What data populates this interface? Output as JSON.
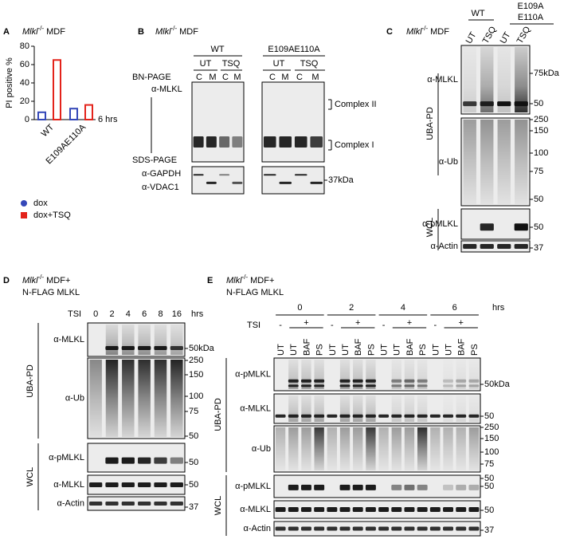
{
  "chart_data": {
    "type": "bar",
    "panel_label": "A",
    "header": {
      "gene": "Mlkl",
      "genotype": "-/-",
      "cell": "MDF"
    },
    "ylabel": "PI positive %",
    "categories": [
      "WT",
      "E109AE110A"
    ],
    "series": [
      {
        "name": "dox",
        "color": "#3447b8",
        "values": [
          8,
          12
        ]
      },
      {
        "name": "dox+TSQ",
        "color": "#e3231b",
        "values": [
          65,
          16
        ]
      }
    ],
    "ylim": [
      0,
      80
    ],
    "yticks": [
      0,
      20,
      40,
      60,
      80
    ],
    "annotation": "6 hrs"
  },
  "panel_b": {
    "label": "B",
    "header": {
      "gene": "Mlkl",
      "genotype": "-/-",
      "cell": "MDF"
    },
    "genotypes": [
      "WT",
      "E109AE110A"
    ],
    "treatments": [
      "UT",
      "TSQ",
      "UT",
      "TSQ"
    ],
    "fractions": [
      "C",
      "M",
      "C",
      "M",
      "C",
      "M",
      "C",
      "M"
    ],
    "methods": [
      "BN-PAGE",
      "SDS-PAGE"
    ],
    "antibodies": [
      "α-MLKL",
      "α-GAPDH",
      "α-VDAC1"
    ],
    "complexes": [
      "Complex II",
      "Complex I"
    ],
    "marker": "37kDa"
  },
  "panel_c": {
    "label": "C",
    "header": {
      "gene": "Mlkl",
      "genotype": "-/-",
      "cell": "MDF"
    },
    "genotype_wt": "WT",
    "genotype_mut": [
      "E109A",
      "E110A"
    ],
    "treatments": [
      "UT",
      "TSQ",
      "UT",
      "TSQ"
    ],
    "sections": [
      "UBA-PD",
      "WCL"
    ],
    "blots": [
      {
        "antibody": "α-MLKL",
        "markers": [
          "75kDa",
          "50"
        ]
      },
      {
        "antibody": "α-Ub",
        "markers": [
          "250",
          "150",
          "100",
          "75",
          "50"
        ]
      },
      {
        "antibody": "α-pMLKL",
        "markers": [
          "50"
        ]
      },
      {
        "antibody": "α-Actin",
        "markers": [
          "37"
        ]
      }
    ]
  },
  "panel_d": {
    "label": "D",
    "header": {
      "gene": "Mlkl",
      "genotype": "-/-",
      "cell": "MDF+"
    },
    "construct": "N-FLAG MLKL",
    "treatment": "TSI",
    "timepoints": [
      0,
      2,
      4,
      6,
      8,
      16
    ],
    "time_unit": "hrs",
    "sections": [
      "UBA-PD",
      "WCL"
    ],
    "blots": [
      {
        "antibody": "α-MLKL",
        "markers": [
          "50kDa"
        ]
      },
      {
        "antibody": "α-Ub",
        "markers": [
          "250",
          "150",
          "100",
          "75",
          "50"
        ]
      },
      {
        "antibody": "α-pMLKL",
        "markers": [
          "50"
        ]
      },
      {
        "antibody": "α-MLKL",
        "markers": [
          "50"
        ]
      },
      {
        "antibody": "α-Actin",
        "markers": [
          "37"
        ]
      }
    ]
  },
  "panel_e": {
    "label": "E",
    "header": {
      "gene": "Mlkl",
      "genotype": "-/-",
      "cell": "MDF+"
    },
    "construct": "N-FLAG MLKL",
    "treatment": "TSI",
    "timepoints": [
      0,
      2,
      4,
      6
    ],
    "time_unit": "hrs",
    "tsi_signs": [
      "-",
      "+",
      "-",
      "+",
      "-",
      "+",
      "-",
      "+"
    ],
    "lanes": [
      "UT",
      "UT",
      "BAF",
      "PS",
      "UT",
      "UT",
      "BAF",
      "PS",
      "UT",
      "UT",
      "BAF",
      "PS",
      "UT",
      "UT",
      "BAF",
      "PS"
    ],
    "sections": [
      "UBA-PD",
      "WCL"
    ],
    "blots": [
      {
        "antibody": "α-pMLKL",
        "markers": [
          "50kDa"
        ]
      },
      {
        "antibody": "α-MLKL",
        "markers": [
          "50"
        ]
      },
      {
        "antibody": "α-Ub",
        "markers": [
          "250",
          "150",
          "100",
          "75",
          "50"
        ]
      },
      {
        "antibody": "α-pMLKL",
        "markers": [
          "50"
        ]
      },
      {
        "antibody": "α-MLKL",
        "markers": [
          "50"
        ]
      },
      {
        "antibody": "α-Actin",
        "markers": [
          "37"
        ]
      }
    ]
  }
}
